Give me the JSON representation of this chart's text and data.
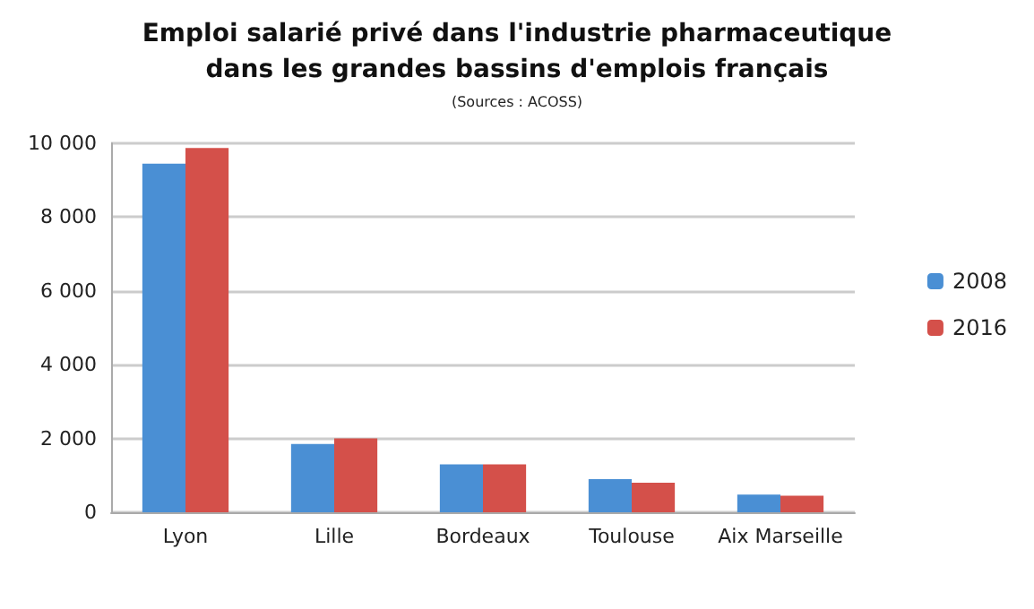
{
  "chart_data": {
    "type": "bar",
    "title": "Emploi salarié privé dans l'industrie pharmaceutique\ndans les grandes bassins d'emplois français",
    "annotations": [
      "(Sources : ACOSS)"
    ],
    "categories": [
      "Lyon",
      "Lille",
      "Bordeaux",
      "Toulouse",
      "Aix Marseille"
    ],
    "series": [
      {
        "name": "2008",
        "color": "#4a8fd4",
        "values": [
          9450,
          1850,
          1300,
          900,
          480
        ]
      },
      {
        "name": "2016",
        "color": "#d4504a",
        "values": [
          9870,
          2000,
          1300,
          800,
          450
        ]
      }
    ],
    "ylim": [
      0,
      10000
    ],
    "yticks": [
      {
        "value": 0,
        "label": "0"
      },
      {
        "value": 2000,
        "label": "2 000"
      },
      {
        "value": 4000,
        "label": "4 000"
      },
      {
        "value": 6000,
        "label": "6 000"
      },
      {
        "value": 8000,
        "label": "8 000"
      },
      {
        "value": 10000,
        "label": "10 000"
      }
    ],
    "grid": "y",
    "legend": "right"
  }
}
